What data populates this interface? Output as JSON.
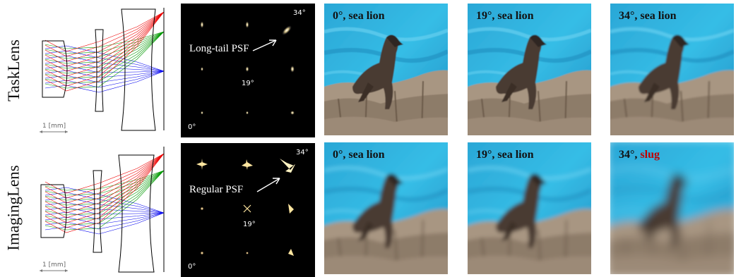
{
  "rows": [
    {
      "label": "TaskLens",
      "scale_label": "1 [mm]",
      "psf_label": "Long-tail PSF",
      "psf_angles": [
        "34°",
        "19°",
        "0°"
      ],
      "images": [
        {
          "angle": "0°",
          "sep": ", ",
          "pred": "sea lion",
          "correct": true,
          "blur": 0.6
        },
        {
          "angle": "19°",
          "sep": ", ",
          "pred": "sea lion",
          "correct": true,
          "blur": 0.8
        },
        {
          "angle": "34°",
          "sep": ", ",
          "pred": "sea lion",
          "correct": true,
          "blur": 1.3
        }
      ]
    },
    {
      "label": "ImagingLens",
      "scale_label": "1 [mm]",
      "psf_label": "Regular PSF",
      "psf_angles": [
        "34°",
        "19°",
        "0°"
      ],
      "images": [
        {
          "angle": "0°",
          "sep": ", ",
          "pred": "sea lion",
          "correct": true,
          "blur": 2.6
        },
        {
          "angle": "19°",
          "sep": ", ",
          "pred": "sea lion",
          "correct": true,
          "blur": 3.0
        },
        {
          "angle": "34°",
          "sep": ", ",
          "pred": "slug",
          "correct": false,
          "blur": 6.5
        }
      ]
    }
  ],
  "ray_colors": {
    "blue": "#0000ee",
    "green": "#009900",
    "red": "#ee0000"
  }
}
